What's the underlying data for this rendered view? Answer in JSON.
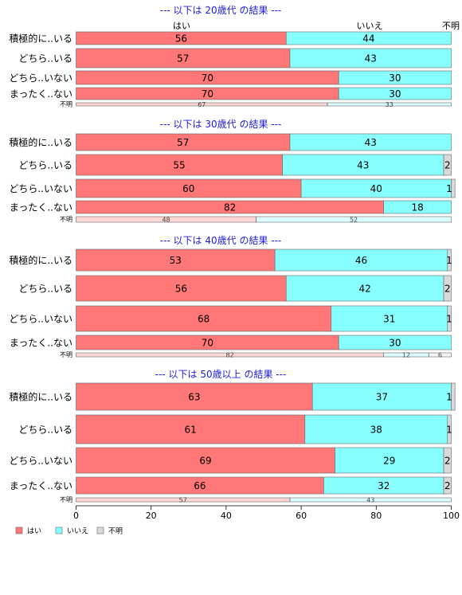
{
  "colors": {
    "yes": "#ff7777",
    "no": "#88ffff",
    "unknown": "#d9d9d9",
    "title": "#1c1cdd",
    "stroke": "#666666"
  },
  "column_headers": {
    "yes": "はい",
    "no": "いいえ",
    "unknown": "不明"
  },
  "legend": [
    {
      "label": "はい",
      "color": "#ff7777"
    },
    {
      "label": "いいえ",
      "color": "#88ffff"
    },
    {
      "label": "不明",
      "color": "#d9d9d9"
    }
  ],
  "chart_data": {
    "type": "bar",
    "orientation": "horizontal",
    "stacked": true,
    "xlim": [
      0,
      100
    ],
    "x_ticks": [
      "0",
      "20",
      "40",
      "60",
      "80",
      "100"
    ],
    "series_names": [
      "はい",
      "いいえ",
      "不明"
    ],
    "panels": [
      {
        "title": "--- 以下は 20歳代 の結果 ---",
        "categories": [
          "積極的に..いる",
          "どちら..いる",
          "どちら..いない",
          "まったく..ない",
          "不明"
        ],
        "series": [
          {
            "name": "はい",
            "values": [
              56,
              57,
              70,
              70,
              67
            ]
          },
          {
            "name": "いいえ",
            "values": [
              44,
              43,
              30,
              30,
              33
            ]
          },
          {
            "name": "不明",
            "values": [
              0,
              0,
              0,
              0,
              0
            ]
          }
        ]
      },
      {
        "title": "--- 以下は 30歳代 の結果 ---",
        "categories": [
          "積極的に..いる",
          "どちら..いる",
          "どちら..いない",
          "まったく..ない",
          "不明"
        ],
        "series": [
          {
            "name": "はい",
            "values": [
              57,
              55,
              60,
              82,
              48
            ]
          },
          {
            "name": "いいえ",
            "values": [
              43,
              43,
              40,
              18,
              52
            ]
          },
          {
            "name": "不明",
            "values": [
              0,
              2,
              1,
              0,
              0
            ]
          }
        ]
      },
      {
        "title": "--- 以下は 40歳代 の結果 ---",
        "categories": [
          "積極的に..いる",
          "どちら..いる",
          "どちら..いない",
          "まったく..ない",
          "不明"
        ],
        "series": [
          {
            "name": "はい",
            "values": [
              53,
              56,
              68,
              70,
              82
            ]
          },
          {
            "name": "いいえ",
            "values": [
              46,
              42,
              31,
              30,
              12
            ]
          },
          {
            "name": "不明",
            "values": [
              1,
              2,
              1,
              0,
              6
            ]
          }
        ]
      },
      {
        "title": "--- 以下は 50歳以上 の結果 ---",
        "categories": [
          "積極的に..いる",
          "どちら..いる",
          "どちら..いない",
          "まったく..ない",
          "不明"
        ],
        "series": [
          {
            "name": "はい",
            "values": [
              63,
              61,
              69,
              66,
              57
            ]
          },
          {
            "name": "いいえ",
            "values": [
              37,
              38,
              29,
              32,
              43
            ]
          },
          {
            "name": "不明",
            "values": [
              1,
              1,
              2,
              2,
              0
            ]
          }
        ]
      }
    ]
  }
}
